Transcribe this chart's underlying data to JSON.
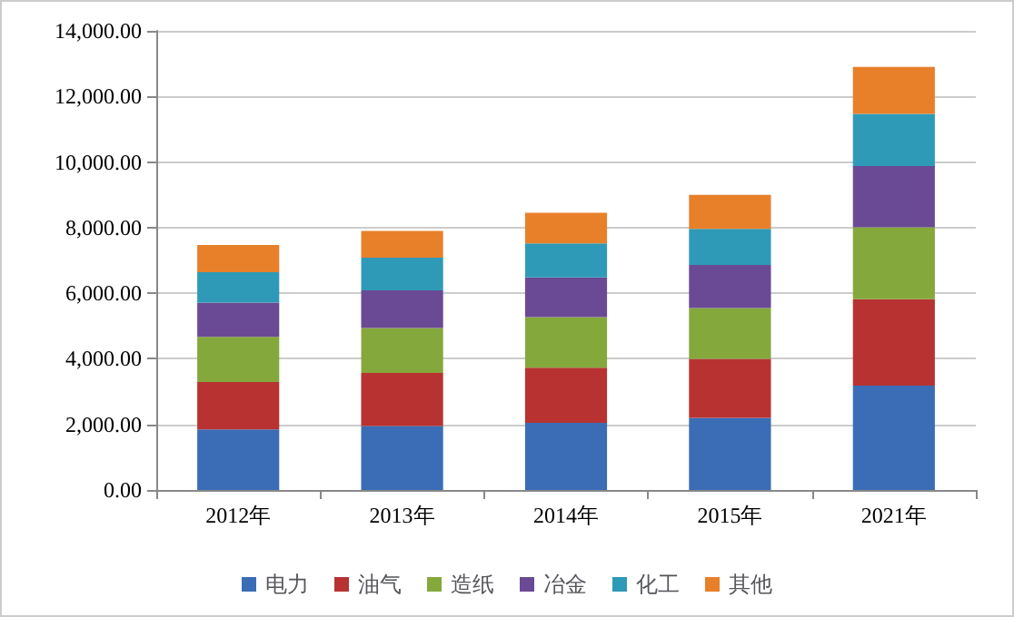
{
  "chart_data": {
    "type": "bar",
    "stacked": true,
    "categories": [
      "2012年",
      "2013年",
      "2014年",
      "2015年",
      "2021年"
    ],
    "series": [
      {
        "name": "电力",
        "color": "#3a6db5",
        "values": [
          1850,
          1950,
          2050,
          2200,
          3180
        ]
      },
      {
        "name": "油气",
        "color": "#b83232",
        "values": [
          1440,
          1620,
          1680,
          1800,
          2640
        ]
      },
      {
        "name": "造纸",
        "color": "#84a83c",
        "values": [
          1380,
          1370,
          1540,
          1550,
          2190
        ]
      },
      {
        "name": "冶金",
        "color": "#6a4a94",
        "values": [
          1040,
          1150,
          1210,
          1310,
          1870
        ]
      },
      {
        "name": "化工",
        "color": "#2e9ab8",
        "values": [
          930,
          990,
          1040,
          1100,
          1590
        ]
      },
      {
        "name": "其他",
        "color": "#e8802a",
        "values": [
          830,
          820,
          930,
          1040,
          1430
        ]
      }
    ],
    "ylim": [
      0,
      14000
    ],
    "yticks": [
      {
        "value": 0,
        "label": "0.00"
      },
      {
        "value": 2000,
        "label": "2,000.00"
      },
      {
        "value": 4000,
        "label": "4,000.00"
      },
      {
        "value": 6000,
        "label": "6,000.00"
      },
      {
        "value": 8000,
        "label": "8,000.00"
      },
      {
        "value": 10000,
        "label": "10,000.00"
      },
      {
        "value": 12000,
        "label": "12,000.00"
      },
      {
        "value": 14000,
        "label": "14,000.00"
      }
    ],
    "grid": "y",
    "legend": "bottom"
  }
}
